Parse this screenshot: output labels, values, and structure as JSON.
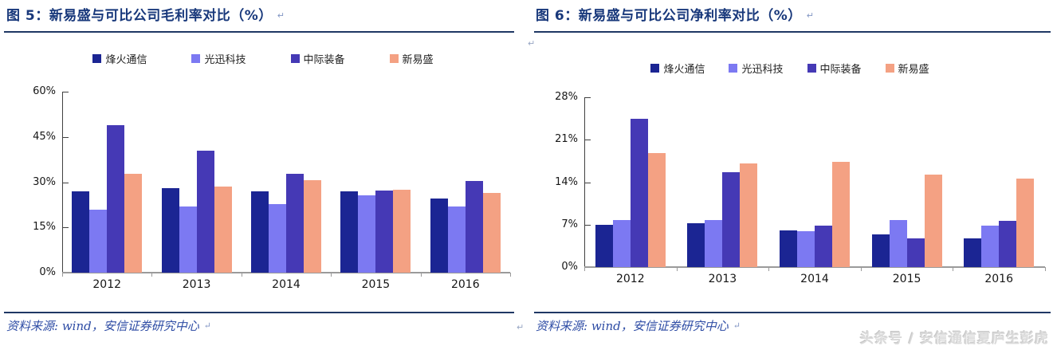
{
  "ui": {
    "pilcrow": "↵",
    "watermark": "头条号 / 安信通信夏庐生彭虎"
  },
  "chart_data": [
    {
      "type": "bar",
      "figure_label": "图 5：",
      "title": "新易盛与可比公司毛利率对比（%）",
      "source": "资料来源: wind，安信证券研究中心",
      "categories": [
        "2012",
        "2013",
        "2014",
        "2015",
        "2016"
      ],
      "series": [
        {
          "name": "烽火通信",
          "color": "#1B2593",
          "values": [
            27.0,
            28.0,
            27.0,
            27.0,
            24.6
          ]
        },
        {
          "name": "光迅科技",
          "color": "#7C79F2",
          "values": [
            20.9,
            22.0,
            22.7,
            25.6,
            22.0
          ]
        },
        {
          "name": "中际装备",
          "color": "#4539B5",
          "values": [
            48.8,
            40.5,
            32.7,
            27.2,
            30.5
          ]
        },
        {
          "name": "新易盛",
          "color": "#F4A183",
          "values": [
            32.8,
            28.6,
            30.6,
            27.5,
            26.4
          ]
        }
      ],
      "ylim": [
        0,
        60
      ],
      "yticks": [
        0,
        15,
        30,
        45,
        60
      ],
      "ytick_labels": [
        "0%",
        "15%",
        "30%",
        "45%",
        "60%"
      ],
      "xlabel": "",
      "ylabel": "",
      "legend_position": "top",
      "grid": false
    },
    {
      "type": "bar",
      "figure_label": "图 6：",
      "title": "新易盛与可比公司净利率对比（%）",
      "source": "资料来源: wind，安信证券研究中心",
      "categories": [
        "2012",
        "2013",
        "2014",
        "2015",
        "2016"
      ],
      "series": [
        {
          "name": "烽火通信",
          "color": "#1B2593",
          "values": [
            7.0,
            7.2,
            6.0,
            5.4,
            4.8
          ]
        },
        {
          "name": "光迅科技",
          "color": "#7C79F2",
          "values": [
            7.7,
            7.7,
            5.9,
            7.8,
            6.8
          ]
        },
        {
          "name": "中际装备",
          "color": "#4539B5",
          "values": [
            24.5,
            15.7,
            6.9,
            4.7,
            7.6
          ]
        },
        {
          "name": "新易盛",
          "color": "#F4A183",
          "values": [
            18.8,
            17.1,
            17.4,
            15.3,
            14.6
          ]
        }
      ],
      "ylim": [
        0,
        28
      ],
      "yticks": [
        0,
        7,
        14,
        21,
        28
      ],
      "ytick_labels": [
        "0%",
        "7%",
        "14%",
        "21%",
        "28%"
      ],
      "xlabel": "",
      "ylabel": "",
      "legend_position": "top",
      "grid": false
    }
  ]
}
